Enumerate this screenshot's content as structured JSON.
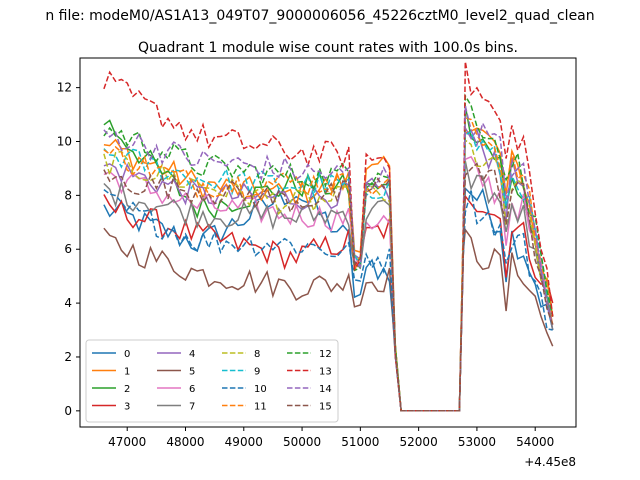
{
  "chart_data": {
    "type": "line",
    "suptitle": "n file: modeM0/AS1A13_049T07_9000006056_45226cztM0_level2_quad_clean",
    "title": "Quadrant 1 module wise count rates with 100.0s bins.",
    "xlabel": "",
    "ylabel": "",
    "x_offset_label": "+4.45e8",
    "xlim": [
      46190,
      54700
    ],
    "ylim": [
      -0.6,
      13.1
    ],
    "xticks": [
      47000,
      48000,
      49000,
      50000,
      51000,
      52000,
      53000,
      54000
    ],
    "yticks": [
      0,
      2,
      4,
      6,
      8,
      10,
      12
    ],
    "legend": {
      "placement": "lower-left",
      "columns": 4
    },
    "colors": [
      "#1f77b4",
      "#ff7f0e",
      "#2ca02c",
      "#d62728",
      "#9467bd",
      "#8c564b",
      "#e377c2",
      "#7f7f7f",
      "#bcbd22",
      "#17becf",
      "#1f77b4",
      "#ff7f0e",
      "#2ca02c",
      "#d62728",
      "#9467bd",
      "#8c564b"
    ],
    "x_segments": [
      [
        46600,
        51500
      ],
      [
        51700,
        52700
      ],
      [
        52800,
        54300
      ]
    ],
    "series": [
      {
        "name": "0",
        "style": "solid",
        "seg1": [
          7.5,
          6.2,
          8.2,
          4.9
        ],
        "drop": 4.2,
        "seg3": [
          8.4,
          7.2,
          6.0,
          3.0
        ]
      },
      {
        "name": "1",
        "style": "solid",
        "seg1": [
          9.9,
          8.4,
          8.0,
          9.0
        ],
        "drop": 6.0,
        "seg3": [
          10.9,
          9.8,
          8.7,
          3.2
        ]
      },
      {
        "name": "2",
        "style": "solid",
        "seg1": [
          10.8,
          7.5,
          8.4,
          8.2
        ],
        "drop": 5.5,
        "seg3": [
          11.0,
          9.5,
          7.9,
          3.5
        ]
      },
      {
        "name": "3",
        "style": "solid",
        "seg1": [
          7.6,
          6.5,
          5.7,
          6.8
        ],
        "drop": 5.5,
        "seg3": [
          8.3,
          7.3,
          6.5,
          4.0
        ]
      },
      {
        "name": "4",
        "style": "solid",
        "seg1": [
          9.1,
          8.0,
          7.9,
          8.2
        ],
        "drop": 5.5,
        "seg3": [
          10.3,
          9.4,
          8.4,
          3.0
        ]
      },
      {
        "name": "5",
        "style": "solid",
        "seg1": [
          6.3,
          5.1,
          4.6,
          4.9
        ],
        "drop": 4.0,
        "seg3": [
          6.2,
          5.5,
          5.2,
          2.4
        ]
      },
      {
        "name": "6",
        "style": "solid",
        "seg1": [
          8.8,
          7.6,
          7.3,
          7.0
        ],
        "drop": 5.5,
        "seg3": [
          9.1,
          8.2,
          7.5,
          3.5
        ]
      },
      {
        "name": "7",
        "style": "solid",
        "seg1": [
          8.2,
          7.3,
          7.2,
          7.5
        ],
        "drop": 5.5,
        "seg3": [
          8.9,
          8.0,
          7.2,
          3.0
        ]
      },
      {
        "name": "8",
        "style": "dashed",
        "seg1": [
          9.3,
          8.4,
          7.7,
          8.0
        ],
        "drop": 5.5,
        "seg3": [
          9.8,
          8.9,
          7.9,
          3.5
        ]
      },
      {
        "name": "9",
        "style": "dashed",
        "seg1": [
          9.6,
          8.6,
          8.4,
          8.3
        ],
        "drop": 5.5,
        "seg3": [
          10.4,
          9.3,
          8.4,
          3.5
        ]
      },
      {
        "name": "10",
        "style": "dashed",
        "seg1": [
          7.8,
          6.3,
          6.2,
          5.6
        ],
        "drop": 4.8,
        "seg3": [
          7.9,
          7.0,
          6.1,
          3.0
        ]
      },
      {
        "name": "11",
        "style": "dashed",
        "seg1": [
          9.6,
          8.4,
          8.5,
          8.3
        ],
        "drop": 5.5,
        "seg3": [
          11.0,
          9.8,
          8.7,
          3.5
        ]
      },
      {
        "name": "12",
        "style": "dashed",
        "seg1": [
          10.5,
          9.1,
          8.7,
          8.8
        ],
        "drop": 5.5,
        "seg3": [
          11.5,
          10.1,
          8.9,
          3.5
        ]
      },
      {
        "name": "13",
        "style": "dashed",
        "seg1": [
          12.2,
          10.2,
          9.6,
          9.4
        ],
        "drop": 5.5,
        "seg3": [
          12.4,
          11.0,
          10.0,
          3.5
        ]
      },
      {
        "name": "14",
        "style": "dashed",
        "seg1": [
          10.3,
          9.3,
          8.9,
          8.6
        ],
        "drop": 5.5,
        "seg3": [
          10.8,
          9.9,
          8.7,
          3.2
        ]
      },
      {
        "name": "15",
        "style": "dashed",
        "seg1": [
          8.6,
          8.2,
          7.8,
          8.3
        ],
        "drop": 5.5,
        "seg3": [
          9.2,
          8.5,
          8.0,
          3.2
        ]
      }
    ]
  }
}
